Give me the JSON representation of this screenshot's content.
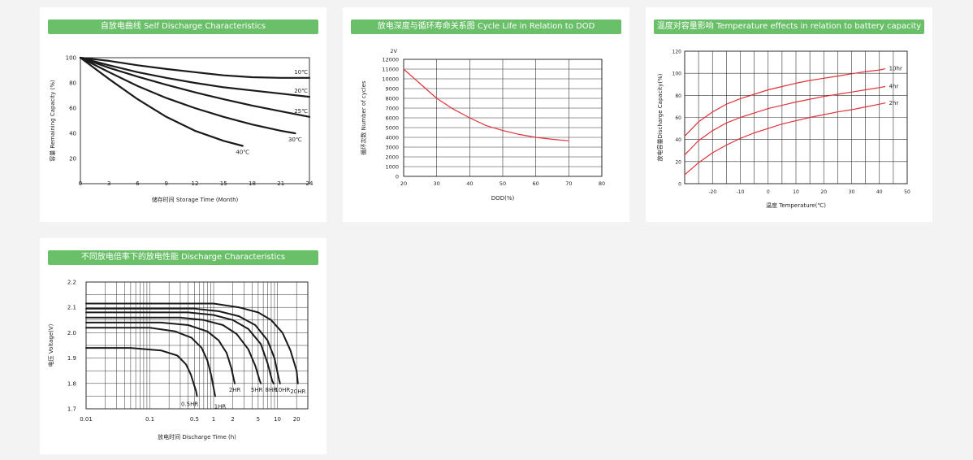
{
  "colors": {
    "background": "#f3f3f3",
    "card": "#ffffff",
    "title_bar": "#6abf69",
    "curve_dark": "#1a1a1a",
    "curve_red": "#e0333b",
    "grid": "#333333"
  },
  "chart_data": [
    {
      "id": "self-discharge",
      "type": "line",
      "title": "自放电曲线 Self Discharge Characteristics",
      "xlabel": "储存时间 Storage Time (Month)",
      "ylabel": "容量 Remaining Capacity (%)",
      "xlim": [
        0,
        24
      ],
      "ylim": [
        0,
        100
      ],
      "x_ticks": [
        0,
        3,
        6,
        9,
        12,
        15,
        18,
        21,
        24
      ],
      "y_ticks": [
        20,
        40,
        60,
        80,
        100
      ],
      "grid": false,
      "series": [
        {
          "name": "10℃",
          "x": [
            0,
            3,
            6,
            9,
            12,
            15,
            18,
            21,
            24
          ],
          "y": [
            100,
            97.5,
            94,
            91,
            88.5,
            86,
            84.5,
            84,
            84
          ]
        },
        {
          "name": "20℃",
          "x": [
            0,
            3,
            6,
            9,
            12,
            15,
            18,
            21,
            24
          ],
          "y": [
            100,
            94,
            88.5,
            84,
            80,
            76.5,
            74,
            71.5,
            69
          ]
        },
        {
          "name": "25℃",
          "x": [
            0,
            3,
            6,
            9,
            12,
            15,
            18,
            21,
            24
          ],
          "y": [
            100,
            92,
            85,
            78.5,
            72.5,
            67,
            62,
            57.5,
            53
          ]
        },
        {
          "name": "30℃",
          "x": [
            0,
            3,
            6,
            9,
            12,
            15,
            18,
            21,
            22.5
          ],
          "y": [
            100,
            88.5,
            77.5,
            68,
            60,
            53,
            47,
            42,
            40
          ]
        },
        {
          "name": "40℃",
          "x": [
            0,
            3,
            6,
            9,
            12,
            15,
            17
          ],
          "y": [
            100,
            83,
            67,
            53,
            42,
            34,
            30
          ]
        }
      ]
    },
    {
      "id": "cycle-life",
      "type": "line",
      "title": "放电深度与循环寿命关系图 Cycle Life in Relation to DOD",
      "xlabel": "DOD(%)",
      "ylabel": "循环次数 Number of cycles",
      "unit_label": "2V",
      "xlim": [
        20,
        80
      ],
      "ylim": [
        0,
        12000
      ],
      "x_ticks": [
        20,
        30,
        40,
        50,
        60,
        70,
        80
      ],
      "y_ticks": [
        0,
        1000,
        2000,
        3000,
        4000,
        5000,
        6000,
        7000,
        8000,
        9000,
        10000,
        11000,
        12000
      ],
      "grid": true,
      "series": [
        {
          "name": "",
          "x": [
            20,
            25,
            30,
            35,
            40,
            45,
            50,
            55,
            60,
            65,
            70
          ],
          "y": [
            11000,
            9500,
            8000,
            6900,
            6000,
            5200,
            4700,
            4300,
            4000,
            3800,
            3650
          ]
        }
      ]
    },
    {
      "id": "temperature",
      "type": "line",
      "title": "温度对容量影响 Temperature effects in relation to battery capacity",
      "xlabel": "温度 Temperature(℃)",
      "ylabel": "放电容量Discharge Capacity(%)",
      "xlim": [
        -30,
        50
      ],
      "ylim": [
        0,
        120
      ],
      "x_ticks": [
        -20,
        -10,
        0,
        10,
        20,
        30,
        40,
        50
      ],
      "y_ticks": [
        0,
        20,
        40,
        60,
        80,
        100,
        120
      ],
      "grid": true,
      "series": [
        {
          "name": "10hr",
          "x": [
            -30,
            -25,
            -20,
            -15,
            -10,
            -5,
            0,
            5,
            10,
            15,
            20,
            25,
            30,
            35,
            40,
            42
          ],
          "y": [
            43,
            56,
            65,
            72,
            77,
            81,
            85,
            88,
            91,
            93.5,
            95.5,
            97.5,
            99.5,
            101.5,
            103,
            104
          ]
        },
        {
          "name": "4hr",
          "x": [
            -30,
            -25,
            -20,
            -15,
            -10,
            -5,
            0,
            5,
            10,
            15,
            20,
            25,
            30,
            35,
            40,
            42
          ],
          "y": [
            26,
            39,
            48,
            55,
            60,
            64,
            68,
            71,
            74,
            76.5,
            79,
            81,
            83,
            85,
            87,
            88
          ]
        },
        {
          "name": "2hr",
          "x": [
            -30,
            -25,
            -20,
            -15,
            -10,
            -5,
            0,
            5,
            10,
            15,
            20,
            25,
            30,
            35,
            40,
            42
          ],
          "y": [
            8,
            19,
            28,
            35,
            41,
            46,
            50,
            54,
            57,
            60,
            62.5,
            65,
            67,
            69.5,
            72,
            73
          ]
        }
      ]
    },
    {
      "id": "discharge",
      "type": "line",
      "title": "不同放电倍率下的放电性能 Discharge Characteristics",
      "xlabel": "放电时间 Discharge Time (h)",
      "ylabel": "电压 Voltage(V)",
      "x_scale": "log",
      "xlim": [
        0.01,
        30
      ],
      "ylim": [
        1.7,
        2.2
      ],
      "x_ticks": [
        0.01,
        0.1,
        0.5,
        1,
        2,
        5,
        10,
        20
      ],
      "x_tick_labels": [
        "0.01",
        "0.1",
        "0.5",
        "1",
        "2",
        "5",
        "10",
        "20"
      ],
      "y_ticks": [
        1.7,
        1.8,
        1.9,
        2.0,
        2.1,
        2.2
      ],
      "y_tick_labels": [
        "1.7",
        "1.8",
        "1.9",
        "2.0",
        "2.1",
        "2.2"
      ],
      "grid": true,
      "series": [
        {
          "name": "20HR",
          "x": [
            0.01,
            1,
            2.5,
            5,
            8,
            12,
            16,
            20,
            21
          ],
          "y": [
            2.115,
            2.115,
            2.1,
            2.08,
            2.05,
            2.0,
            1.93,
            1.85,
            1.8
          ]
        },
        {
          "name": "10HR",
          "x": [
            0.01,
            0.5,
            1.2,
            2.5,
            4.5,
            7,
            9,
            10.5,
            11
          ],
          "y": [
            2.095,
            2.095,
            2.085,
            2.065,
            2.03,
            1.97,
            1.9,
            1.82,
            1.8
          ]
        },
        {
          "name": "8HR",
          "x": [
            0.01,
            0.4,
            1,
            2,
            3.5,
            5.5,
            7,
            8.3,
            8.7
          ],
          "y": [
            2.08,
            2.08,
            2.07,
            2.05,
            2.015,
            1.955,
            1.88,
            1.81,
            1.8
          ]
        },
        {
          "name": "5HR",
          "x": [
            0.01,
            0.3,
            0.7,
            1.4,
            2.3,
            3.5,
            4.5,
            5.3,
            5.5
          ],
          "y": [
            2.06,
            2.06,
            2.05,
            2.03,
            1.995,
            1.935,
            1.87,
            1.81,
            1.8
          ]
        },
        {
          "name": "2HR",
          "x": [
            0.01,
            0.15,
            0.4,
            0.8,
            1.2,
            1.6,
            1.9,
            2.1,
            2.15
          ],
          "y": [
            2.04,
            2.04,
            2.03,
            2.005,
            1.97,
            1.92,
            1.86,
            1.81,
            1.8
          ]
        },
        {
          "name": "1HR",
          "x": [
            0.01,
            0.1,
            0.25,
            0.45,
            0.65,
            0.8,
            0.92,
            1.02,
            1.06
          ],
          "y": [
            2.02,
            2.02,
            2.005,
            1.98,
            1.94,
            1.89,
            1.83,
            1.77,
            1.75
          ]
        },
        {
          "name": "0.5HR",
          "x": [
            0.01,
            0.05,
            0.15,
            0.27,
            0.37,
            0.44,
            0.5,
            0.53,
            0.55
          ],
          "y": [
            1.94,
            1.94,
            1.93,
            1.91,
            1.875,
            1.835,
            1.79,
            1.77,
            1.75
          ]
        }
      ]
    }
  ]
}
